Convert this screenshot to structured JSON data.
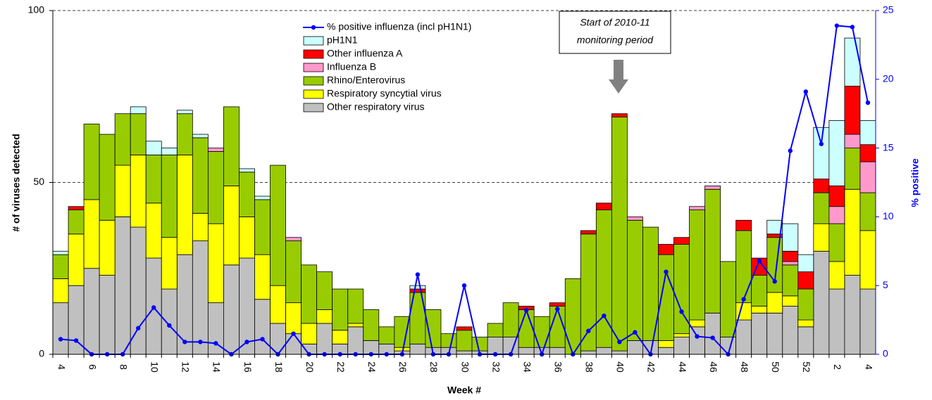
{
  "chart_data": {
    "type": "bar",
    "x_label": "Week #",
    "y_label": "# of viruses detected",
    "y2_label": "% positive",
    "annotation": [
      "Start of 2010-11",
      "monitoring period"
    ],
    "categories": [
      "4",
      null,
      "6",
      null,
      "8",
      null,
      "10",
      null,
      "12",
      null,
      "14",
      null,
      "16",
      null,
      "18",
      null,
      "20",
      null,
      "22",
      null,
      "24",
      null,
      "26",
      null,
      "28",
      null,
      "30",
      null,
      "32",
      null,
      "34",
      null,
      "36",
      null,
      "38",
      null,
      "40",
      null,
      "42",
      null,
      "44",
      null,
      "46",
      null,
      "48",
      null,
      "50",
      null,
      "52",
      null,
      "2",
      null,
      "4"
    ],
    "ylim": [
      0,
      100
    ],
    "yticks": [
      0,
      50,
      100
    ],
    "y2lim": [
      0,
      25
    ],
    "y2ticks": [
      0,
      5,
      10,
      15,
      20,
      25
    ],
    "grid": true,
    "series": [
      {
        "name": "Other respiratory virus",
        "color": "#c0c0c0",
        "values": [
          15,
          20,
          25,
          23,
          40,
          37,
          28,
          19,
          29,
          33,
          15,
          26,
          28,
          16,
          9,
          6,
          3,
          9,
          3,
          8,
          4,
          3,
          1,
          3,
          2,
          2,
          1,
          1,
          5,
          5,
          2,
          2,
          2,
          0,
          1,
          2,
          1,
          4,
          4,
          2,
          5,
          8,
          12,
          5,
          10,
          12,
          12,
          14,
          8,
          30,
          19,
          23,
          19
        ]
      },
      {
        "name": "Respiratory syncytial virus",
        "color": "#ffff00",
        "values": [
          7,
          15,
          20,
          16,
          15,
          21,
          16,
          15,
          29,
          8,
          23,
          23,
          12,
          13,
          11,
          9,
          6,
          4,
          4,
          1,
          0,
          0,
          1,
          0,
          0,
          0,
          0,
          0,
          0,
          0,
          0,
          0,
          0,
          0,
          0,
          0,
          0,
          0,
          0,
          2,
          1,
          2,
          0,
          0,
          5,
          2,
          6,
          3,
          2,
          8,
          8,
          25,
          17
        ]
      },
      {
        "name": "Rhino/Enterovirus",
        "color": "#99cc00",
        "values": [
          7,
          7,
          22,
          25,
          15,
          12,
          14,
          24,
          12,
          22,
          21,
          23,
          13,
          16,
          35,
          18,
          17,
          11,
          12,
          10,
          9,
          5,
          9,
          15,
          11,
          4,
          6,
          4,
          4,
          10,
          11,
          9,
          12,
          22,
          34,
          40,
          68,
          35,
          33,
          25,
          26,
          32,
          36,
          22,
          21,
          9,
          16,
          9,
          9,
          9,
          11,
          12,
          11
        ]
      },
      {
        "name": "Influenza B",
        "color": "#ff99cc",
        "values": [
          0,
          0,
          0,
          0,
          0,
          0,
          0,
          0,
          0,
          0,
          1,
          0,
          0,
          0,
          0,
          1,
          0,
          0,
          0,
          0,
          0,
          0,
          0,
          0,
          0,
          0,
          0,
          0,
          0,
          0,
          0,
          0,
          0,
          0,
          0,
          0,
          0,
          1,
          0,
          0,
          0,
          1,
          1,
          0,
          0,
          0,
          0,
          1,
          0,
          0,
          5,
          4,
          9
        ]
      },
      {
        "name": "Other influenza A",
        "color": "#ff0000",
        "values": [
          0,
          1,
          0,
          0,
          0,
          0,
          0,
          0,
          0,
          0,
          0,
          0,
          0,
          0,
          0,
          0,
          0,
          0,
          0,
          0,
          0,
          0,
          0,
          1,
          0,
          0,
          1,
          0,
          0,
          0,
          1,
          0,
          1,
          0,
          1,
          2,
          1,
          0,
          0,
          3,
          2,
          0,
          0,
          0,
          3,
          5,
          1,
          3,
          5,
          4,
          6,
          14,
          5
        ]
      },
      {
        "name": "pH1N1",
        "color": "#ccffff",
        "values": [
          1,
          0,
          0,
          0,
          0,
          2,
          4,
          2,
          1,
          1,
          0,
          0,
          1,
          1,
          0,
          0,
          0,
          0,
          0,
          0,
          0,
          0,
          0,
          1,
          0,
          0,
          0,
          0,
          0,
          0,
          0,
          0,
          0,
          0,
          0,
          0,
          0,
          0,
          0,
          0,
          0,
          0,
          0,
          0,
          0,
          0,
          4,
          8,
          5,
          15,
          19,
          14,
          7
        ]
      },
      {
        "name": "% positive influenza (incl pH1N1)",
        "color": "#0000ff",
        "axis": "y2",
        "values": [
          1.1,
          1.0,
          0,
          0,
          0,
          1.9,
          3.4,
          2.1,
          0.9,
          0.9,
          0.8,
          0,
          0.9,
          1.1,
          0,
          1.5,
          0,
          0,
          0,
          0,
          0,
          0,
          0,
          5.8,
          0,
          0,
          5.0,
          0,
          0,
          0,
          3.2,
          0,
          3.3,
          0,
          1.7,
          2.8,
          0.9,
          1.6,
          0,
          6.0,
          3.1,
          1.3,
          1.2,
          0,
          4.0,
          6.8,
          5.3,
          14.8,
          19.1,
          15.3,
          23.9,
          23.8,
          18.3
        ]
      }
    ]
  }
}
